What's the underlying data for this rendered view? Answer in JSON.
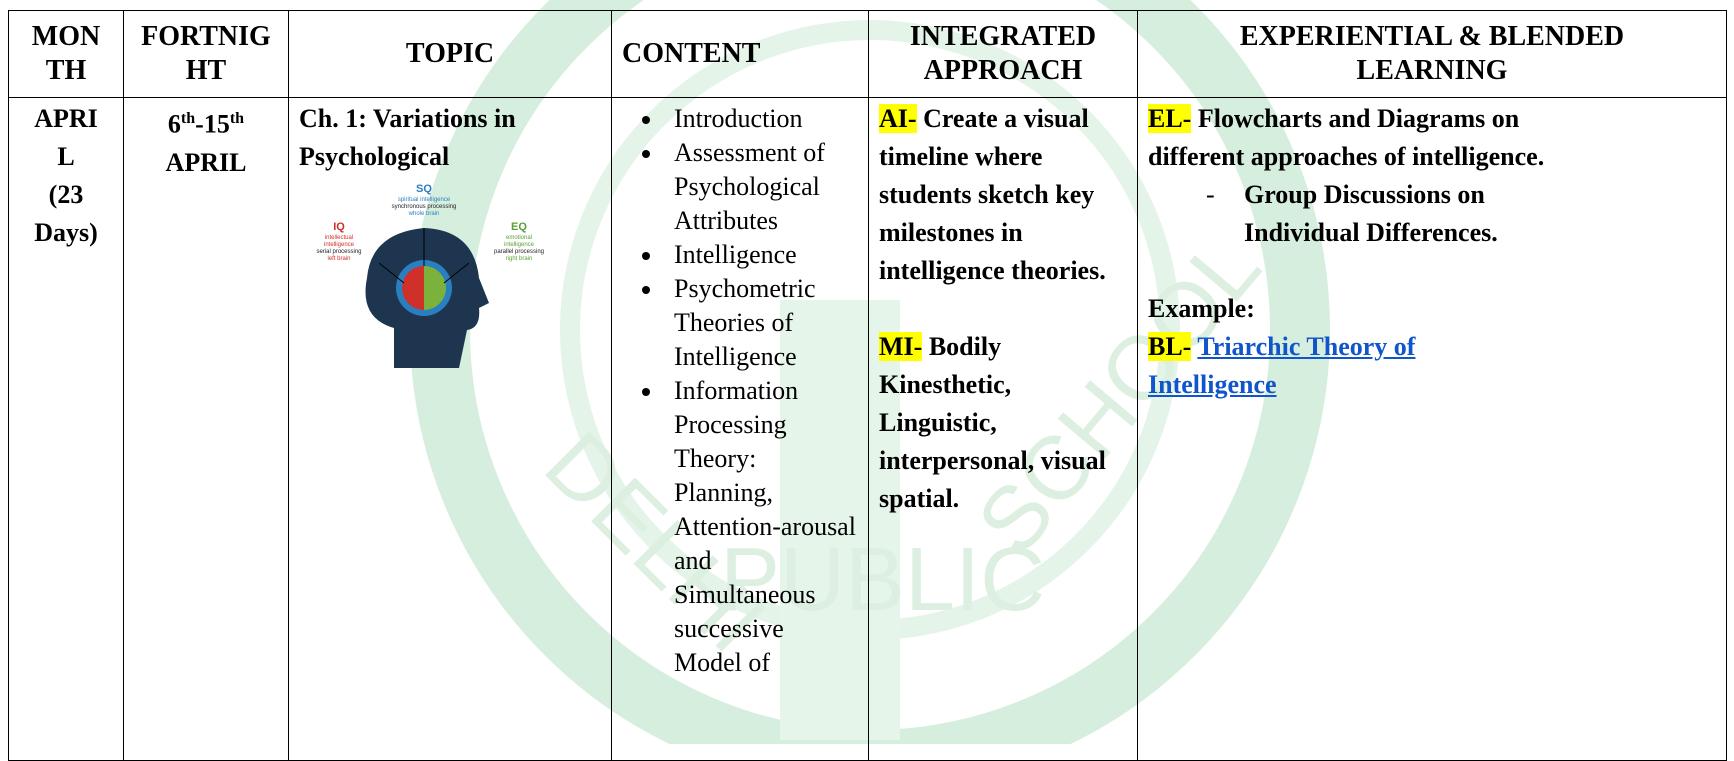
{
  "header": {
    "month": [
      "MON",
      "TH"
    ],
    "fortnight": [
      "FORTNIG",
      "HT"
    ],
    "topic": "TOPIC",
    "content": "CONTENT",
    "integrated": [
      "INTEGRATED",
      "APPROACH"
    ],
    "experiential": [
      "EXPERIENTIAL & BLENDED",
      "LEARNING"
    ]
  },
  "row": {
    "month": [
      "APRI",
      "L",
      "(23",
      "Days)"
    ],
    "fortnight": {
      "start": "6",
      "start_sup": "th",
      "end": "-15",
      "end_sup": "th",
      "month": "APRIL"
    },
    "topic": "Ch. 1: Variations in Psychological",
    "figure": {
      "sq": "SQ",
      "sq_lines": [
        "spiritual intelligence",
        "synchronous processing",
        "whole brain"
      ],
      "iq": "IQ",
      "iq_lines": [
        "intellectual",
        "intelligence",
        "serial processing",
        "left brain"
      ],
      "eq": "EQ",
      "eq_lines": [
        "emotional",
        "intelligence",
        "parallel processing",
        "right brain"
      ]
    },
    "content": [
      "Introduction",
      "Assessment of Psychological Attributes",
      "Intelligence",
      "Psychometric Theories of Intelligence",
      "Information Processing Theory: Planning, Attention-arousal and Simultaneous successive Model of"
    ],
    "integrated": {
      "ai_tag": "AI-",
      "ai_text": "Create a visual timeline where students sketch key milestones in intelligence theories.",
      "mi_tag": "MI-",
      "mi_text": "Bodily Kinesthetic, Linguistic, interpersonal, visual spatial."
    },
    "experiential": {
      "el_tag": "EL-",
      "el_text": "Flowcharts and Diagrams on different approaches of intelligence.",
      "dash": "-",
      "item": "Group Discussions on Individual Differences.",
      "example": "Example:",
      "bl_tag": "BL-",
      "link": "Triarchic Theory of Intelligence"
    }
  },
  "watermark": [
    "DELHI",
    "PUBLIC",
    "SCHOOL"
  ]
}
